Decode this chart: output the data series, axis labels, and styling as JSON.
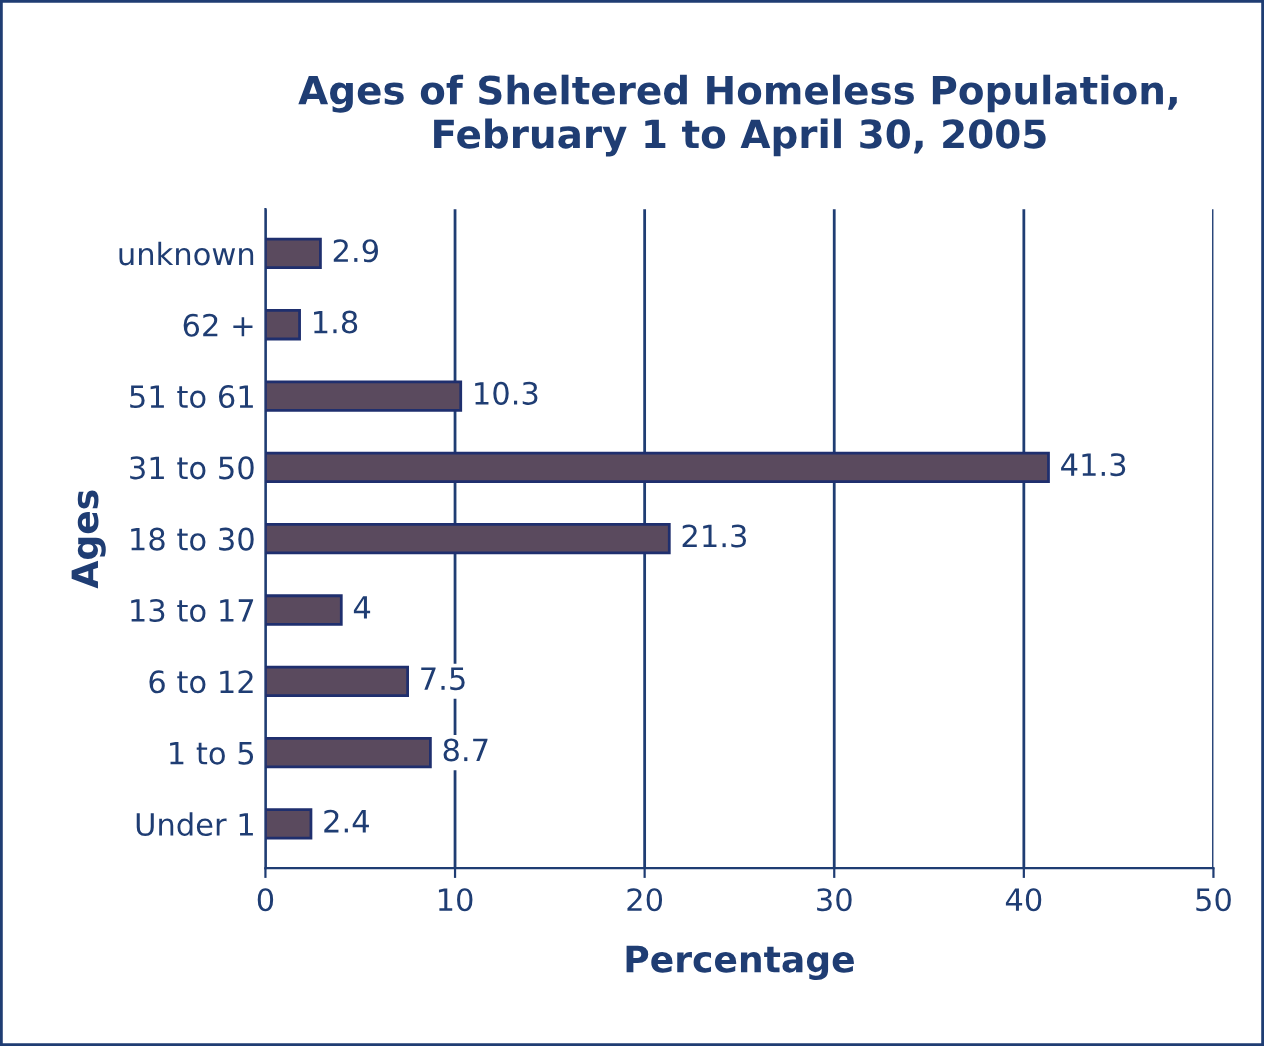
{
  "chart_data": {
    "type": "bar",
    "orientation": "horizontal",
    "title": "Ages of Sheltered Homeless Population,\nFebruary 1 to April 30, 2005",
    "xlabel": "Percentage",
    "ylabel": "Ages",
    "categories": [
      "unknown",
      "62 +",
      "51 to 61",
      "31 to 50",
      "18 to 30",
      "13 to 17",
      "6 to 12",
      "1 to 5",
      "Under 1"
    ],
    "values": [
      2.9,
      1.8,
      10.3,
      41.3,
      21.3,
      4,
      7.5,
      8.7,
      2.4
    ],
    "color": "#5a4a5e",
    "xlim": [
      0,
      50
    ],
    "xticks": [
      0,
      10,
      20,
      30,
      40,
      50
    ],
    "grid": "x",
    "data_labels": true
  }
}
